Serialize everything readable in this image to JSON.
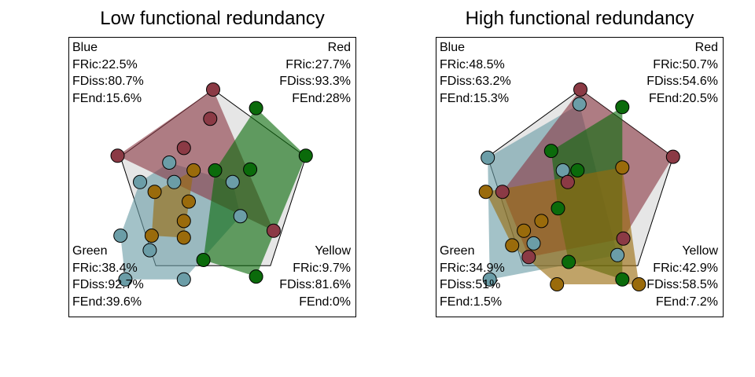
{
  "chart_data": [
    {
      "type": "scatter",
      "title": "Low functional redundancy",
      "colors": {
        "Blue": "#6b9da7",
        "Red": "#8b3a45",
        "Green": "#0b6b0b",
        "Yellow": "#9a6b0b"
      },
      "groups": [
        {
          "name": "Blue",
          "FRic": "FRic:22.5%",
          "FDiss": "FDiss:80.7%",
          "FEnd": "FEnd:15.6%",
          "points": [
            [
              0.2,
              0.05
            ],
            [
              0.28,
              -0.3
            ],
            [
              -0.4,
              0.05
            ],
            [
              -0.95,
              -0.5
            ],
            [
              -0.9,
              -0.95
            ],
            [
              -0.3,
              -0.95
            ],
            [
              -0.65,
              -0.65
            ],
            [
              -0.45,
              0.25
            ],
            [
              -0.75,
              0.05
            ]
          ]
        },
        {
          "name": "Red",
          "FRic": "FRic:27.7%",
          "FDiss": "FDiss:93.3%",
          "FEnd": "FEnd:28%",
          "points": [
            [
              0.0,
              1.0
            ],
            [
              -0.98,
              0.32
            ],
            [
              -0.03,
              0.7
            ],
            [
              -0.3,
              0.4
            ],
            [
              0.62,
              -0.45
            ]
          ]
        },
        {
          "name": "Green",
          "FRic": "FRic:38.4%",
          "FDiss": "FDiss:92.7%",
          "FEnd": "FEnd:39.6%",
          "points": [
            [
              0.44,
              0.81
            ],
            [
              0.95,
              0.32
            ],
            [
              0.44,
              -0.92
            ],
            [
              -0.1,
              -0.75
            ],
            [
              0.02,
              0.17
            ],
            [
              0.38,
              0.18
            ]
          ]
        },
        {
          "name": "Yellow",
          "FRic": "FRic:9.7%",
          "FDiss": "FDiss:81.6%",
          "FEnd": "FEnd:0%",
          "points": [
            [
              -0.2,
              0.17
            ],
            [
              -0.6,
              -0.05
            ],
            [
              -0.25,
              -0.15
            ],
            [
              -0.3,
              -0.35
            ],
            [
              -0.3,
              -0.52
            ],
            [
              -0.63,
              -0.5
            ]
          ]
        }
      ]
    },
    {
      "type": "scatter",
      "title": "High functional redundancy",
      "colors": {
        "Blue": "#6b9da7",
        "Red": "#8b3a45",
        "Green": "#0b6b0b",
        "Yellow": "#9a6b0b"
      },
      "groups": [
        {
          "name": "Blue",
          "FRic": "FRic:48.5%",
          "FDiss": "FDiss:63.2%",
          "FEnd": "FEnd:15.3%",
          "points": [
            [
              -0.01,
              0.85
            ],
            [
              -0.95,
              0.3
            ],
            [
              -0.93,
              -0.95
            ],
            [
              -0.18,
              0.17
            ],
            [
              -0.48,
              -0.58
            ],
            [
              0.38,
              -0.7
            ]
          ]
        },
        {
          "name": "Red",
          "FRic": "FRic:50.7%",
          "FDiss": "FDiss:54.6%",
          "FEnd": "FEnd:20.5%",
          "points": [
            [
              0.0,
              1.0
            ],
            [
              0.95,
              0.31
            ],
            [
              -0.8,
              -0.05
            ],
            [
              -0.13,
              0.05
            ],
            [
              0.44,
              -0.53
            ],
            [
              -0.53,
              -0.72
            ]
          ]
        },
        {
          "name": "Green",
          "FRic": "FRic:34.9%",
          "FDiss": "FDiss:51%",
          "FEnd": "FEnd:1.5%",
          "points": [
            [
              0.43,
              0.82
            ],
            [
              -0.3,
              0.37
            ],
            [
              -0.03,
              0.17
            ],
            [
              0.43,
              -0.95
            ],
            [
              -0.23,
              -0.22
            ],
            [
              -0.12,
              -0.77
            ]
          ]
        },
        {
          "name": "Yellow",
          "FRic": "FRic:42.9%",
          "FDiss": "FDiss:58.5%",
          "FEnd": "FEnd:7.2%",
          "points": [
            [
              0.43,
              0.2
            ],
            [
              -0.97,
              -0.05
            ],
            [
              0.6,
              -1.0
            ],
            [
              -0.24,
              -1.0
            ],
            [
              -0.4,
              -0.35
            ],
            [
              -0.7,
              -0.6
            ],
            [
              -0.58,
              -0.45
            ]
          ]
        }
      ]
    }
  ]
}
